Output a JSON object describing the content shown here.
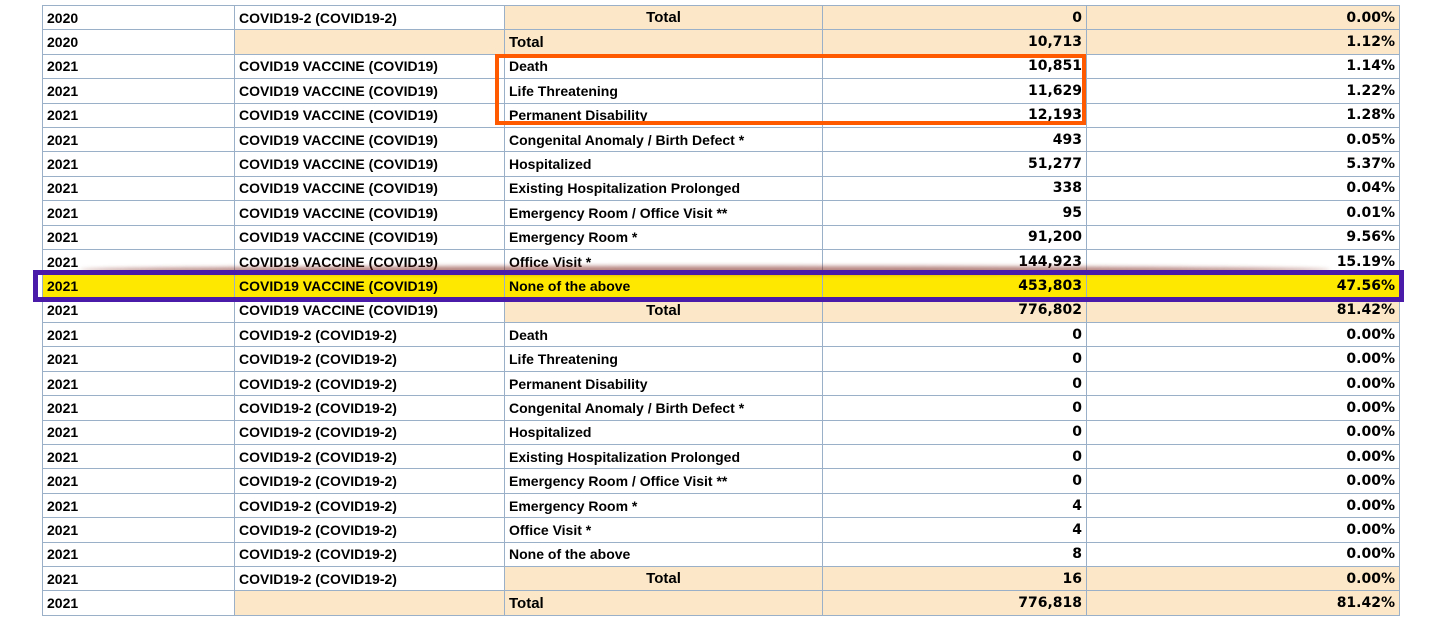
{
  "rows": [
    {
      "year": "2020",
      "vax": "COVID19-2 (COVID19-2)",
      "symptom": "Total",
      "count": "0",
      "pct": "0.00%",
      "kind": "total"
    },
    {
      "year": "2020",
      "vax": "",
      "symptom": "Total",
      "count": "10,713",
      "pct": "1.12%",
      "kind": "grandtotal"
    },
    {
      "year": "2021",
      "vax": "COVID19 VACCINE (COVID19)",
      "symptom": "Death",
      "count": "10,851",
      "pct": "1.14%",
      "kind": "normal"
    },
    {
      "year": "2021",
      "vax": "COVID19 VACCINE (COVID19)",
      "symptom": "Life Threatening",
      "count": "11,629",
      "pct": "1.22%",
      "kind": "normal"
    },
    {
      "year": "2021",
      "vax": "COVID19 VACCINE (COVID19)",
      "symptom": "Permanent Disability",
      "count": "12,193",
      "pct": "1.28%",
      "kind": "normal"
    },
    {
      "year": "2021",
      "vax": "COVID19 VACCINE (COVID19)",
      "symptom": "Congenital Anomaly / Birth Defect *",
      "count": "493",
      "pct": "0.05%",
      "kind": "normal"
    },
    {
      "year": "2021",
      "vax": "COVID19 VACCINE (COVID19)",
      "symptom": "Hospitalized",
      "count": "51,277",
      "pct": "5.37%",
      "kind": "normal"
    },
    {
      "year": "2021",
      "vax": "COVID19 VACCINE (COVID19)",
      "symptom": "Existing Hospitalization Prolonged",
      "count": "338",
      "pct": "0.04%",
      "kind": "normal"
    },
    {
      "year": "2021",
      "vax": "COVID19 VACCINE (COVID19)",
      "symptom": "Emergency Room / Office Visit **",
      "count": "95",
      "pct": "0.01%",
      "kind": "normal"
    },
    {
      "year": "2021",
      "vax": "COVID19 VACCINE (COVID19)",
      "symptom": "Emergency Room *",
      "count": "91,200",
      "pct": "9.56%",
      "kind": "normal"
    },
    {
      "year": "2021",
      "vax": "COVID19 VACCINE (COVID19)",
      "symptom": "Office Visit *",
      "count": "144,923",
      "pct": "15.19%",
      "kind": "normal"
    },
    {
      "year": "2021",
      "vax": "COVID19 VACCINE (COVID19)",
      "symptom": "None of the above",
      "count": "453,803",
      "pct": "47.56%",
      "kind": "highlight"
    },
    {
      "year": "2021",
      "vax": "COVID19 VACCINE (COVID19)",
      "symptom": "Total",
      "count": "776,802",
      "pct": "81.42%",
      "kind": "total"
    },
    {
      "year": "2021",
      "vax": "COVID19-2 (COVID19-2)",
      "symptom": "Death",
      "count": "0",
      "pct": "0.00%",
      "kind": "normal"
    },
    {
      "year": "2021",
      "vax": "COVID19-2 (COVID19-2)",
      "symptom": "Life Threatening",
      "count": "0",
      "pct": "0.00%",
      "kind": "normal"
    },
    {
      "year": "2021",
      "vax": "COVID19-2 (COVID19-2)",
      "symptom": "Permanent Disability",
      "count": "0",
      "pct": "0.00%",
      "kind": "normal"
    },
    {
      "year": "2021",
      "vax": "COVID19-2 (COVID19-2)",
      "symptom": "Congenital Anomaly / Birth Defect *",
      "count": "0",
      "pct": "0.00%",
      "kind": "normal"
    },
    {
      "year": "2021",
      "vax": "COVID19-2 (COVID19-2)",
      "symptom": "Hospitalized",
      "count": "0",
      "pct": "0.00%",
      "kind": "normal"
    },
    {
      "year": "2021",
      "vax": "COVID19-2 (COVID19-2)",
      "symptom": "Existing Hospitalization Prolonged",
      "count": "0",
      "pct": "0.00%",
      "kind": "normal"
    },
    {
      "year": "2021",
      "vax": "COVID19-2 (COVID19-2)",
      "symptom": "Emergency Room / Office Visit **",
      "count": "0",
      "pct": "0.00%",
      "kind": "normal"
    },
    {
      "year": "2021",
      "vax": "COVID19-2 (COVID19-2)",
      "symptom": "Emergency Room *",
      "count": "4",
      "pct": "0.00%",
      "kind": "normal"
    },
    {
      "year": "2021",
      "vax": "COVID19-2 (COVID19-2)",
      "symptom": "Office Visit *",
      "count": "4",
      "pct": "0.00%",
      "kind": "normal"
    },
    {
      "year": "2021",
      "vax": "COVID19-2 (COVID19-2)",
      "symptom": "None of the above",
      "count": "8",
      "pct": "0.00%",
      "kind": "normal"
    },
    {
      "year": "2021",
      "vax": "COVID19-2 (COVID19-2)",
      "symptom": "Total",
      "count": "16",
      "pct": "0.00%",
      "kind": "total"
    },
    {
      "year": "2021",
      "vax": "",
      "symptom": "Total",
      "count": "776,818",
      "pct": "81.42%",
      "kind": "grandtotal"
    }
  ],
  "colors": {
    "total_bg": "#fce8c8",
    "highlight_bg": "#ffe800",
    "annotation_orange": "#ff5a00",
    "annotation_purple": "#4a1aa8",
    "grid_border": "#9ab0c8"
  }
}
